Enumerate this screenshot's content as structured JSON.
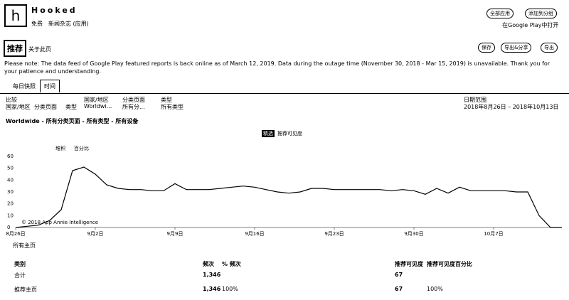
{
  "header": {
    "app_name": "Hooked",
    "price": "免费",
    "category": "新闻杂志 (应用)",
    "buttons": [
      "全部应用",
      "添加到分组"
    ],
    "store_link": "在Google Play中打开"
  },
  "page": {
    "title": "推荐",
    "about": "关于此页",
    "actions": [
      "保存",
      "导出&分享",
      "导出"
    ]
  },
  "notice": "Please note: The data feed of Google Play featured reports is back online as of March 12, 2019. Data during the outage time (November 30, 2018 - Mar 15, 2019) is unavailable. Thank you for your patience and understanding.",
  "tabs": [
    "每日快照",
    "时间"
  ],
  "filters": {
    "compare": "比较",
    "items": [
      {
        "label": "国家/地区",
        "value": "Worldwi..."
      },
      {
        "label": "分类页面",
        "value": "所有分..."
      },
      {
        "label": "类型",
        "value": "所有类型"
      }
    ],
    "date_label": "日期范围",
    "date_value": "2018年8月26日 – 2018年10月13日"
  },
  "breadcrumb": "Worldwide - 所有分类页面 - 所有类型 - 所有设备",
  "chart_data": {
    "type": "line",
    "badge": "精选",
    "toolbar": [
      "堆积",
      "百分比"
    ],
    "watermark": "© 2018 App Annie Intelligence",
    "categories": [
      "8月26日",
      null,
      null,
      null,
      null,
      null,
      null,
      "9月2日",
      null,
      null,
      null,
      null,
      null,
      null,
      "9月9日",
      null,
      null,
      null,
      null,
      null,
      null,
      "9月16日",
      null,
      null,
      null,
      null,
      null,
      null,
      "9月23日",
      null,
      null,
      null,
      null,
      null,
      null,
      "9月30日",
      null,
      null,
      null,
      null,
      null,
      null,
      "10月7日",
      null,
      null,
      null,
      null,
      null,
      null
    ],
    "series": [
      {
        "name": "推荐可见度",
        "color": "#000000",
        "values": [
          0,
          1,
          2,
          6,
          15,
          48,
          51,
          45,
          36,
          33,
          32,
          32,
          31,
          31,
          37,
          32,
          32,
          32,
          33,
          34,
          35,
          34,
          32,
          30,
          29,
          30,
          33,
          33,
          32,
          32,
          32,
          32,
          32,
          31,
          32,
          31,
          28,
          33,
          29,
          34,
          31,
          31,
          31,
          31,
          30,
          30,
          10,
          0,
          0
        ]
      }
    ],
    "ylim": [
      0,
      60
    ],
    "yticks": [
      0,
      10,
      20,
      30,
      40,
      50,
      60
    ],
    "grid": false
  },
  "chart_legend": "所有主页",
  "table": {
    "headers": [
      "类别",
      "频次",
      "% 频次",
      "推荐可见度",
      "推荐可见度百分比"
    ],
    "rows": [
      [
        "合计",
        "1,346",
        "",
        "67",
        ""
      ],
      [
        "推荐主页",
        "1,346",
        "100%",
        "67",
        "100%"
      ]
    ]
  }
}
